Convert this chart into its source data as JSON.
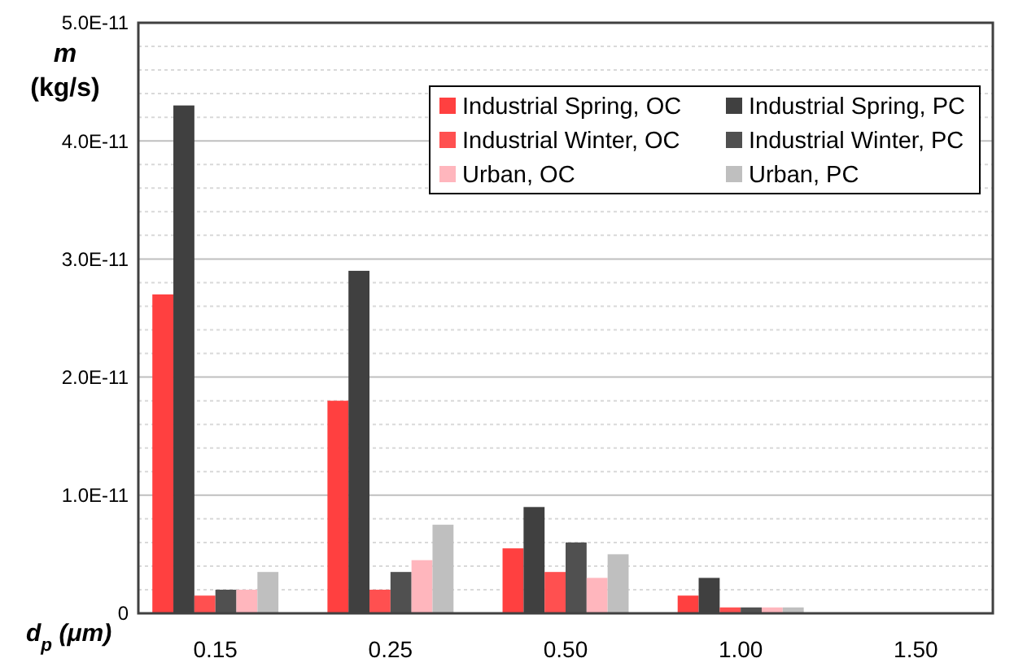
{
  "chart_data": {
    "type": "bar",
    "xlabel": "d$_{p}$ (μm)",
    "ylabel": "m (kg/s)",
    "categories": [
      "0.15",
      "0.25",
      "0.50",
      "1.00",
      "1.50"
    ],
    "series": [
      {
        "name": "Industrial Spring, OC",
        "color": "#ff4040",
        "values": [
          2.7e-11,
          1.8e-11,
          5.5e-12,
          1.5e-12,
          0
        ]
      },
      {
        "name": "Industrial Spring, PC",
        "color": "#404040",
        "values": [
          4.3e-11,
          2.9e-11,
          9e-12,
          3e-12,
          0
        ]
      },
      {
        "name": "Industrial Winter, OC",
        "color": "#ff5050",
        "values": [
          1.5e-12,
          2e-12,
          3.5e-12,
          5e-13,
          0
        ]
      },
      {
        "name": "Industrial Winter, PC",
        "color": "#505050",
        "values": [
          2e-12,
          3.5e-12,
          6e-12,
          5e-13,
          0
        ]
      },
      {
        "name": "Urban, OC",
        "color": "#ffb6bd",
        "values": [
          2e-12,
          4.5e-12,
          3e-12,
          5e-13,
          0
        ]
      },
      {
        "name": "Urban, PC",
        "color": "#bfbfbf",
        "values": [
          3.5e-12,
          7.5e-12,
          5e-12,
          5e-13,
          0
        ]
      }
    ],
    "ylim": [
      0,
      5e-11
    ],
    "yticks": [
      0,
      {
        "value": 1e-11,
        "label": "1.0E-11"
      },
      {
        "value": 2e-11,
        "label": "2.0E-11"
      },
      {
        "value": 3e-11,
        "label": "3.0E-11"
      },
      {
        "value": 4e-11,
        "label": "4.0E-11"
      },
      {
        "value": 5e-11,
        "label": "5.0E-11"
      }
    ],
    "grid": "y",
    "legend": "top right"
  }
}
